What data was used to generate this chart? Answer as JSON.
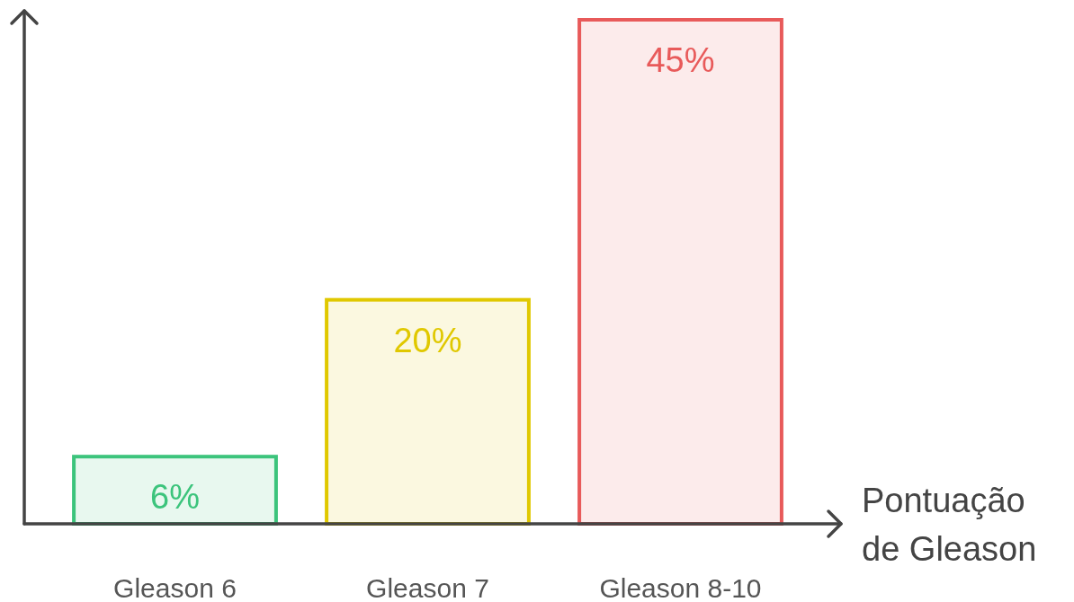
{
  "chart_data": {
    "type": "bar",
    "xlabel": "Pontuação de Gleason",
    "categories": [
      "Gleason 6",
      "Gleason 7",
      "Gleason 8-10"
    ],
    "values": [
      6,
      20,
      45
    ],
    "colors": [
      "#3cc47c",
      "#e0c800",
      "#e85a5a"
    ],
    "data_labels": true,
    "value_labels": [
      "6%",
      "20%",
      "45%"
    ]
  }
}
